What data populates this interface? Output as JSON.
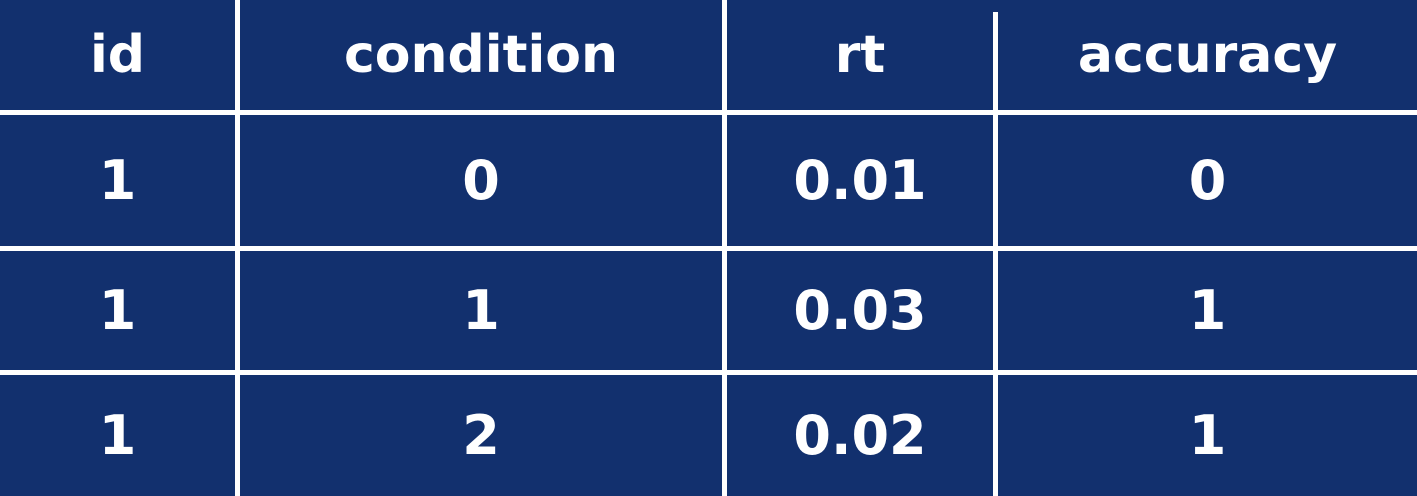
{
  "chart_data": {
    "type": "table",
    "columns": [
      "id",
      "condition",
      "rt",
      "accuracy"
    ],
    "rows": [
      [
        "1",
        "0",
        "0.01",
        "0"
      ],
      [
        "1",
        "1",
        "0.03",
        "1"
      ],
      [
        "1",
        "2",
        "0.02",
        "1"
      ]
    ]
  },
  "colors": {
    "background": "#12306e",
    "text": "#ffffff",
    "grid": "#ffffff"
  }
}
